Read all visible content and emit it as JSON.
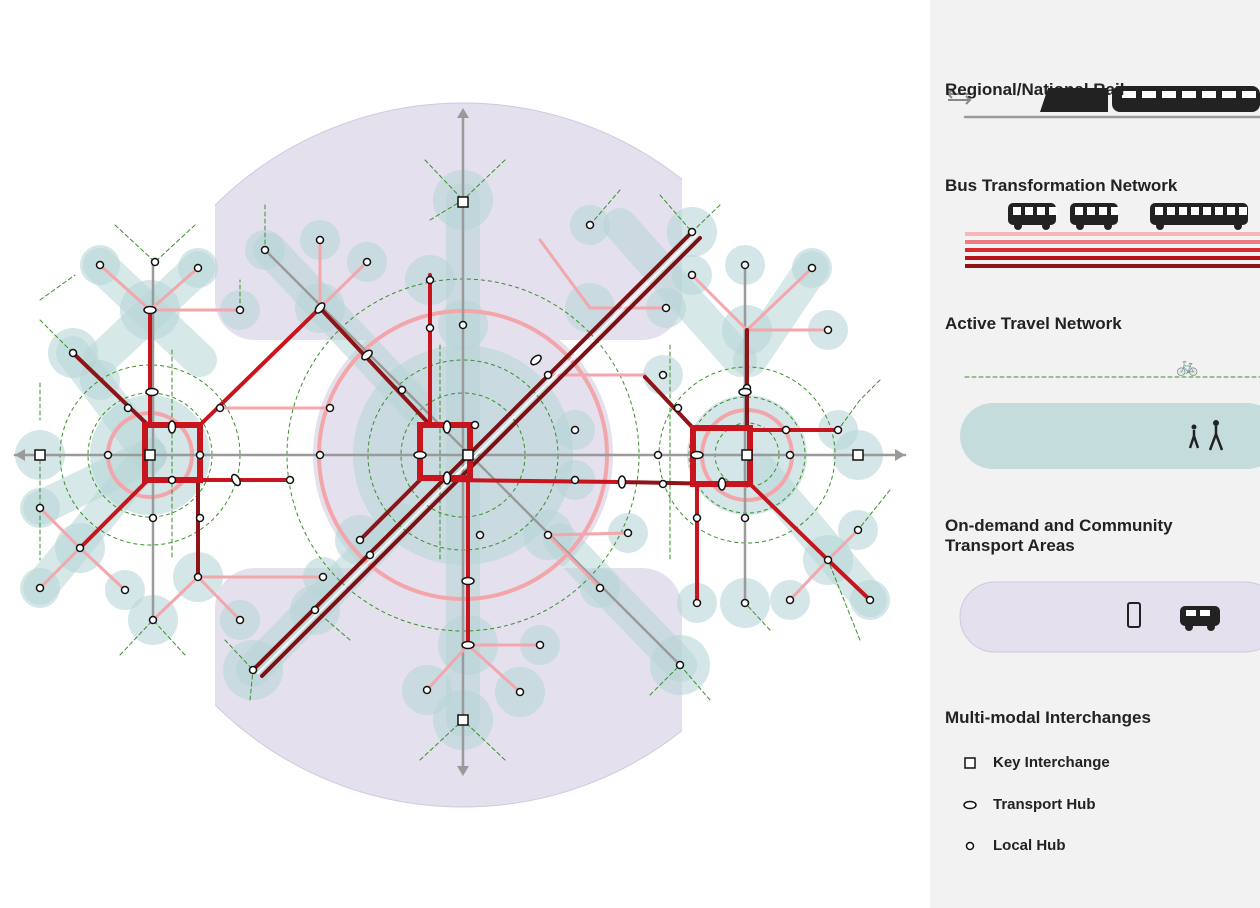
{
  "legend": {
    "rail": "Regional/National Rail",
    "bus": "Bus Transformation Network",
    "active_travel": "Active Travel Network",
    "on_demand": "On-demand and Community Transport Areas",
    "interchanges": {
      "title": "Multi-modal Interchanges",
      "items": [
        "Key Interchange",
        "Transport Hub",
        "Local Hub"
      ]
    }
  }
}
